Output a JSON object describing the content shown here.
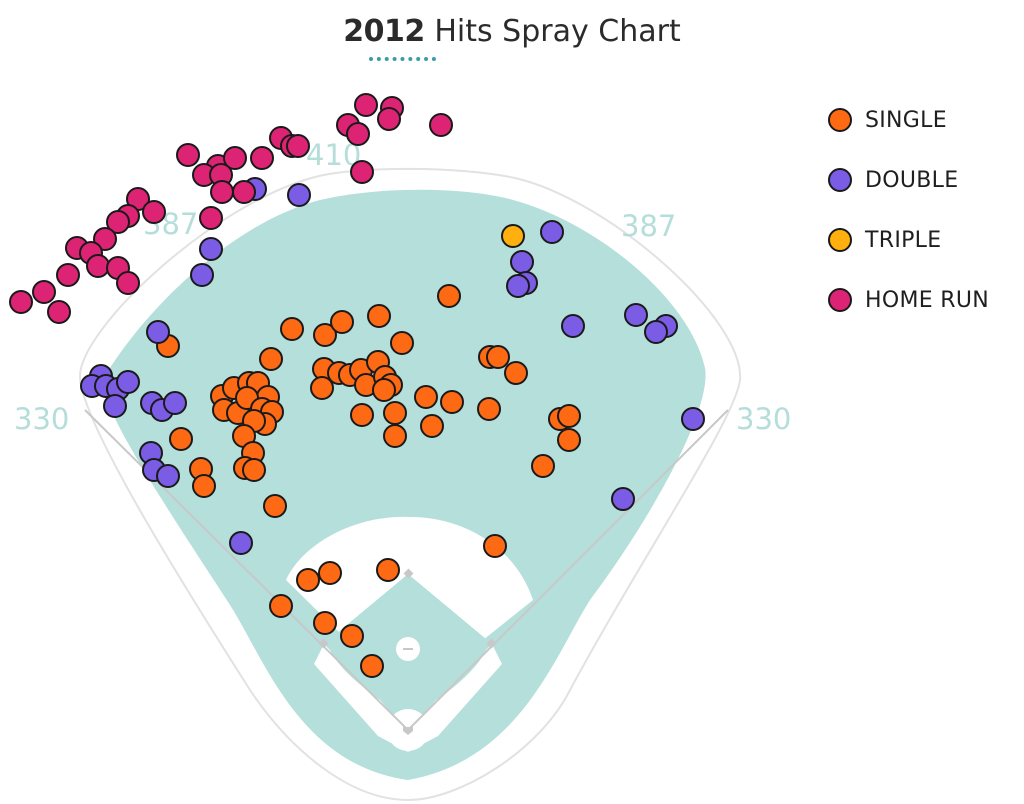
{
  "title": {
    "year": "2012",
    "text": "Hits Spray Chart"
  },
  "field_labels": {
    "left_line": "330",
    "left_center": "387",
    "center": "410",
    "right_center": "387",
    "right_line": "330"
  },
  "colors": {
    "single": "#fe6a14",
    "double": "#7b5ce5",
    "triple": "#ffb00f",
    "home_run": "#dd2474",
    "outfield_grass": "#b4dfdb",
    "infield_dirt": "#ffffff",
    "warning_track": "#ffffff",
    "foul_line": "#c8c8c8"
  },
  "chart_data": {
    "type": "scatter",
    "title": "2012 Hits Spray Chart",
    "legend_position": "top-right",
    "legend": [
      "SINGLE",
      "DOUBLE",
      "TRIPLE",
      "HOME RUN"
    ],
    "series": [
      {
        "name": "SINGLE",
        "color": "#fe6a14",
        "points": [
          [
            449,
            296
          ],
          [
            292,
            329
          ],
          [
            325,
            335
          ],
          [
            342,
            322
          ],
          [
            379,
            316
          ],
          [
            402,
            343
          ],
          [
            168,
            346
          ],
          [
            271,
            359
          ],
          [
            324,
            369
          ],
          [
            339,
            373
          ],
          [
            350,
            375
          ],
          [
            361,
            370
          ],
          [
            378,
            362
          ],
          [
            366,
            385
          ],
          [
            385,
            377
          ],
          [
            391,
            385
          ],
          [
            384,
            390
          ],
          [
            322,
            388
          ],
          [
            222,
            396
          ],
          [
            234,
            388
          ],
          [
            249,
            383
          ],
          [
            258,
            383
          ],
          [
            268,
            397
          ],
          [
            224,
            410
          ],
          [
            238,
            413
          ],
          [
            247,
            398
          ],
          [
            262,
            409
          ],
          [
            272,
            412
          ],
          [
            265,
            424
          ],
          [
            254,
            421
          ],
          [
            244,
            436
          ],
          [
            253,
            453
          ],
          [
            245,
            468
          ],
          [
            254,
            470
          ],
          [
            181,
            439
          ],
          [
            201,
            469
          ],
          [
            204,
            486
          ],
          [
            275,
            506
          ],
          [
            362,
            415
          ],
          [
            395,
            413
          ],
          [
            395,
            436
          ],
          [
            426,
            397
          ],
          [
            452,
            402
          ],
          [
            432,
            426
          ],
          [
            490,
            357
          ],
          [
            498,
            357
          ],
          [
            516,
            373
          ],
          [
            489,
            409
          ],
          [
            560,
            419
          ],
          [
            569,
            416
          ],
          [
            569,
            440
          ],
          [
            543,
            466
          ],
          [
            495,
            546
          ],
          [
            388,
            570
          ],
          [
            330,
            573
          ],
          [
            308,
            580
          ],
          [
            281,
            606
          ],
          [
            325,
            623
          ],
          [
            352,
            636
          ],
          [
            372,
            666
          ]
        ]
      },
      {
        "name": "DOUBLE",
        "color": "#7b5ce5",
        "points": [
          [
            255,
            189
          ],
          [
            299,
            195
          ],
          [
            211,
            249
          ],
          [
            202,
            275
          ],
          [
            552,
            232
          ],
          [
            522,
            262
          ],
          [
            526,
            283
          ],
          [
            518,
            286
          ],
          [
            573,
            326
          ],
          [
            636,
            315
          ],
          [
            666,
            326
          ],
          [
            656,
            332
          ],
          [
            158,
            332
          ],
          [
            101,
            376
          ],
          [
            92,
            386
          ],
          [
            106,
            386
          ],
          [
            118,
            389
          ],
          [
            128,
            382
          ],
          [
            115,
            406
          ],
          [
            152,
            403
          ],
          [
            162,
            410
          ],
          [
            175,
            403
          ],
          [
            151,
            453
          ],
          [
            154,
            470
          ],
          [
            168,
            476
          ],
          [
            693,
            419
          ],
          [
            623,
            499
          ],
          [
            241,
            543
          ]
        ]
      },
      {
        "name": "TRIPLE",
        "color": "#ffb00f",
        "points": [
          [
            513,
            236
          ]
        ]
      },
      {
        "name": "HOME RUN",
        "color": "#dd2474",
        "points": [
          [
            366,
            105
          ],
          [
            392,
            108
          ],
          [
            389,
            119
          ],
          [
            348,
            125
          ],
          [
            358,
            134
          ],
          [
            441,
            125
          ],
          [
            281,
            138
          ],
          [
            292,
            146
          ],
          [
            298,
            146
          ],
          [
            188,
            155
          ],
          [
            218,
            166
          ],
          [
            235,
            158
          ],
          [
            262,
            158
          ],
          [
            204,
            175
          ],
          [
            221,
            175
          ],
          [
            222,
            192
          ],
          [
            244,
            192
          ],
          [
            362,
            172
          ],
          [
            138,
            199
          ],
          [
            128,
            216
          ],
          [
            118,
            222
          ],
          [
            154,
            212
          ],
          [
            211,
            218
          ],
          [
            105,
            239
          ],
          [
            77,
            248
          ],
          [
            91,
            253
          ],
          [
            98,
            266
          ],
          [
            118,
            268
          ],
          [
            128,
            283
          ],
          [
            68,
            275
          ],
          [
            44,
            292
          ],
          [
            21,
            302
          ],
          [
            59,
            312
          ]
        ]
      }
    ]
  }
}
